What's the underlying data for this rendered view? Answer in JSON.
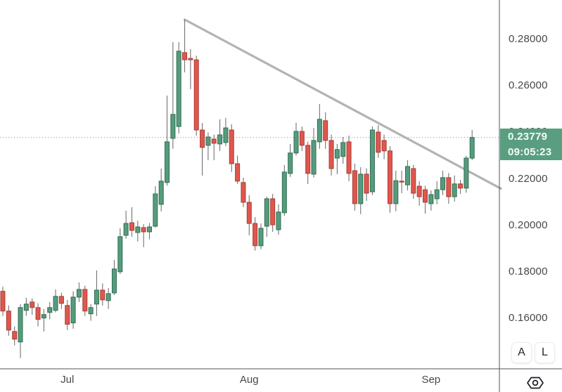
{
  "chart_data": {
    "type": "candlestick",
    "timeframe_hint": "daily",
    "y_axis": {
      "side": "right",
      "ticks": [
        {
          "label": "0.28000",
          "value": 0.28
        },
        {
          "label": "0.26000",
          "value": 0.26
        },
        {
          "label": "0.24000",
          "value": 0.24
        },
        {
          "label": "0.22000",
          "value": 0.22
        },
        {
          "label": "0.20000",
          "value": 0.2
        },
        {
          "label": "0.18000",
          "value": 0.18
        },
        {
          "label": "0.16000",
          "value": 0.16
        }
      ]
    },
    "x_axis": {
      "month_labels": [
        {
          "label": "Jul",
          "candle_index": 11
        },
        {
          "label": "Aug",
          "candle_index": 42
        },
        {
          "label": "Sep",
          "candle_index": 73
        }
      ]
    },
    "current_price": {
      "value": 0.23779,
      "label": "0.23779",
      "countdown": "09:05:23"
    },
    "trendline": {
      "description": "descending resistance line from peak high, broken by last candles",
      "start": {
        "candle_index": 31,
        "price": 0.2885
      },
      "end": {
        "candle_index": 84.9,
        "price": 0.2158
      }
    },
    "candles_ohlc_columns": [
      "open",
      "high",
      "low",
      "close"
    ],
    "candles_ohlc": [
      [
        0.1716,
        0.1736,
        0.161,
        0.1631
      ],
      [
        0.1631,
        0.1655,
        0.1525,
        0.1549
      ],
      [
        0.1543,
        0.1565,
        0.1483,
        0.151
      ],
      [
        0.1498,
        0.166,
        0.1429,
        0.1646
      ],
      [
        0.1634,
        0.1688,
        0.161,
        0.1661
      ],
      [
        0.167,
        0.1685,
        0.1615,
        0.1646
      ],
      [
        0.1646,
        0.1665,
        0.1565,
        0.1595
      ],
      [
        0.1601,
        0.164,
        0.1543,
        0.1616
      ],
      [
        0.1625,
        0.167,
        0.1595,
        0.1646
      ],
      [
        0.1634,
        0.1724,
        0.1625,
        0.1694
      ],
      [
        0.1694,
        0.171,
        0.164,
        0.1664
      ],
      [
        0.1655,
        0.1679,
        0.1549,
        0.1574
      ],
      [
        0.158,
        0.1716,
        0.1555,
        0.1691
      ],
      [
        0.1691,
        0.1754,
        0.167,
        0.1724
      ],
      [
        0.1724,
        0.174,
        0.161,
        0.1631
      ],
      [
        0.1619,
        0.1661,
        0.1589,
        0.1646
      ],
      [
        0.1661,
        0.1806,
        0.161,
        0.1721
      ],
      [
        0.1721,
        0.175,
        0.1655,
        0.1679
      ],
      [
        0.1676,
        0.173,
        0.164,
        0.1706
      ],
      [
        0.1709,
        0.1851,
        0.17,
        0.1812
      ],
      [
        0.18,
        0.1987,
        0.179,
        0.1951
      ],
      [
        0.1957,
        0.2063,
        0.1942,
        0.2008
      ],
      [
        0.2011,
        0.2078,
        0.1951,
        0.1978
      ],
      [
        0.1969,
        0.202,
        0.193,
        0.1993
      ],
      [
        0.199,
        0.2005,
        0.1906,
        0.1972
      ],
      [
        0.1972,
        0.201,
        0.194,
        0.1993
      ],
      [
        0.1996,
        0.2168,
        0.199,
        0.2135
      ],
      [
        0.209,
        0.2244,
        0.206,
        0.219
      ],
      [
        0.2184,
        0.2558,
        0.217,
        0.2359
      ],
      [
        0.2374,
        0.2788,
        0.2329,
        0.2477
      ],
      [
        0.2425,
        0.2788,
        0.2395,
        0.2749
      ],
      [
        0.2743,
        0.2885,
        0.2658,
        0.2712
      ],
      [
        0.2718,
        0.2758,
        0.2586,
        0.2712
      ],
      [
        0.2712,
        0.273,
        0.2386,
        0.241
      ],
      [
        0.241,
        0.244,
        0.2214,
        0.2335
      ],
      [
        0.2344,
        0.24,
        0.228,
        0.238
      ],
      [
        0.2371,
        0.239,
        0.228,
        0.2353
      ],
      [
        0.235,
        0.2456,
        0.232,
        0.2389
      ],
      [
        0.2356,
        0.2462,
        0.234,
        0.2419
      ],
      [
        0.241,
        0.2435,
        0.2229,
        0.2265
      ],
      [
        0.2265,
        0.23,
        0.2178,
        0.219
      ],
      [
        0.2184,
        0.2205,
        0.2078,
        0.2099
      ],
      [
        0.2099,
        0.213,
        0.1957,
        0.2008
      ],
      [
        0.2008,
        0.2035,
        0.1891,
        0.1912
      ],
      [
        0.1912,
        0.2008,
        0.1897,
        0.1987
      ],
      [
        0.1996,
        0.2123,
        0.195,
        0.2114
      ],
      [
        0.2114,
        0.2135,
        0.1972,
        0.2002
      ],
      [
        0.1981,
        0.209,
        0.196,
        0.2057
      ],
      [
        0.2054,
        0.2259,
        0.204,
        0.2229
      ],
      [
        0.2223,
        0.235,
        0.2208,
        0.2311
      ],
      [
        0.2311,
        0.2441,
        0.23,
        0.2404
      ],
      [
        0.2404,
        0.2425,
        0.232,
        0.2344
      ],
      [
        0.2344,
        0.236,
        0.2178,
        0.2223
      ],
      [
        0.222,
        0.2419,
        0.2205,
        0.2365
      ],
      [
        0.2359,
        0.2522,
        0.2329,
        0.2456
      ],
      [
        0.245,
        0.2486,
        0.2329,
        0.2365
      ],
      [
        0.2365,
        0.239,
        0.2214,
        0.2244
      ],
      [
        0.2289,
        0.235,
        0.222,
        0.2326
      ],
      [
        0.2296,
        0.238,
        0.2265,
        0.2356
      ],
      [
        0.2359,
        0.2386,
        0.219,
        0.2223
      ],
      [
        0.2235,
        0.2265,
        0.2063,
        0.2093
      ],
      [
        0.2093,
        0.225,
        0.2048,
        0.222
      ],
      [
        0.222,
        0.2245,
        0.2105,
        0.2138
      ],
      [
        0.2144,
        0.2425,
        0.213,
        0.241
      ],
      [
        0.2401,
        0.2431,
        0.229,
        0.2314
      ],
      [
        0.2365,
        0.239,
        0.2284,
        0.232
      ],
      [
        0.232,
        0.234,
        0.2054,
        0.2093
      ],
      [
        0.2093,
        0.2235,
        0.206,
        0.2192
      ],
      [
        0.219,
        0.2235,
        0.2138,
        0.2187
      ],
      [
        0.2174,
        0.228,
        0.215,
        0.2253
      ],
      [
        0.2244,
        0.226,
        0.2114,
        0.2138
      ],
      [
        0.2168,
        0.219,
        0.2084,
        0.2123
      ],
      [
        0.2153,
        0.217,
        0.205,
        0.2099
      ],
      [
        0.2093,
        0.215,
        0.2063,
        0.2132
      ],
      [
        0.2114,
        0.219,
        0.209,
        0.2153
      ],
      [
        0.2153,
        0.2235,
        0.213,
        0.2205
      ],
      [
        0.2205,
        0.2225,
        0.2093,
        0.2123
      ],
      [
        0.2123,
        0.2214,
        0.2102,
        0.2178
      ],
      [
        0.2178,
        0.2195,
        0.2135,
        0.216
      ],
      [
        0.216,
        0.2299,
        0.214,
        0.2289
      ],
      [
        0.2289,
        0.241,
        0.228,
        0.23779
      ]
    ],
    "colors": {
      "up": "#579b7d",
      "up_border": "#2f6e54",
      "down": "#df574d",
      "down_border": "#aa3d35",
      "wick": "#737375",
      "trendline": "#b3b3b3",
      "price_line": "#8c8c8c",
      "price_label_bg": "#5a9e82",
      "price_label_text": "#f6fbf8",
      "axis_text": "#474747",
      "axis_line": "#50535e",
      "background": "#ffffff"
    }
  },
  "ui": {
    "buttons": {
      "a_label": "A",
      "l_label": "L"
    },
    "time_axis_icon": "hexagon-circle-icon"
  }
}
